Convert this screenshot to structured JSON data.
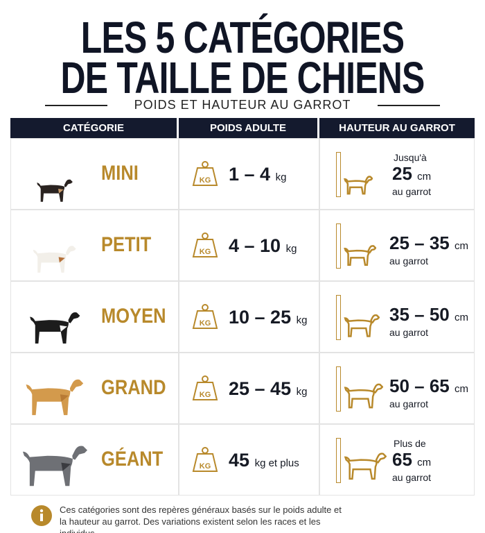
{
  "header": {
    "title_lines": [
      "LES 5 CATÉGORIES",
      "DE TAILLE DE CHIENS"
    ],
    "subtitle": "POIDS ET HAUTEUR AU GARROT"
  },
  "table": {
    "columns": [
      "CATÉGORIE",
      "POIDS ADULTE",
      "HAUTEUR AU GARROT"
    ],
    "weight_icon_label": "KG",
    "rows": [
      {
        "category": "MINI",
        "weight": {
          "value": "1 – 4",
          "unit": "kg"
        },
        "height": {
          "prefix": "Jusqu'à",
          "value": "25",
          "unit": "cm",
          "suffix": "au garrot"
        }
      },
      {
        "category": "PETIT",
        "weight": {
          "value": "4 – 10",
          "unit": "kg"
        },
        "height": {
          "value": "25 – 35",
          "unit": "cm",
          "suffix": "au garrot"
        }
      },
      {
        "category": "MOYEN",
        "weight": {
          "value": "10 – 25",
          "unit": "kg"
        },
        "height": {
          "value": "35 – 50",
          "unit": "cm",
          "suffix": "au garrot"
        }
      },
      {
        "category": "GRAND",
        "weight": {
          "value": "25 – 45",
          "unit": "kg"
        },
        "height": {
          "value": "50 – 65",
          "unit": "cm",
          "suffix": "au garrot"
        }
      },
      {
        "category": "GÉANT",
        "weight": {
          "value": "45",
          "unit": "kg et plus"
        },
        "height": {
          "prefix": "Plus de",
          "value": "65",
          "unit": "cm",
          "suffix": "au garrot"
        }
      }
    ]
  },
  "footnote": "Ces catégories sont des repères généraux basés sur le poids adulte et la hauteur au garrot. Des variations existent selon les races et les individus."
}
